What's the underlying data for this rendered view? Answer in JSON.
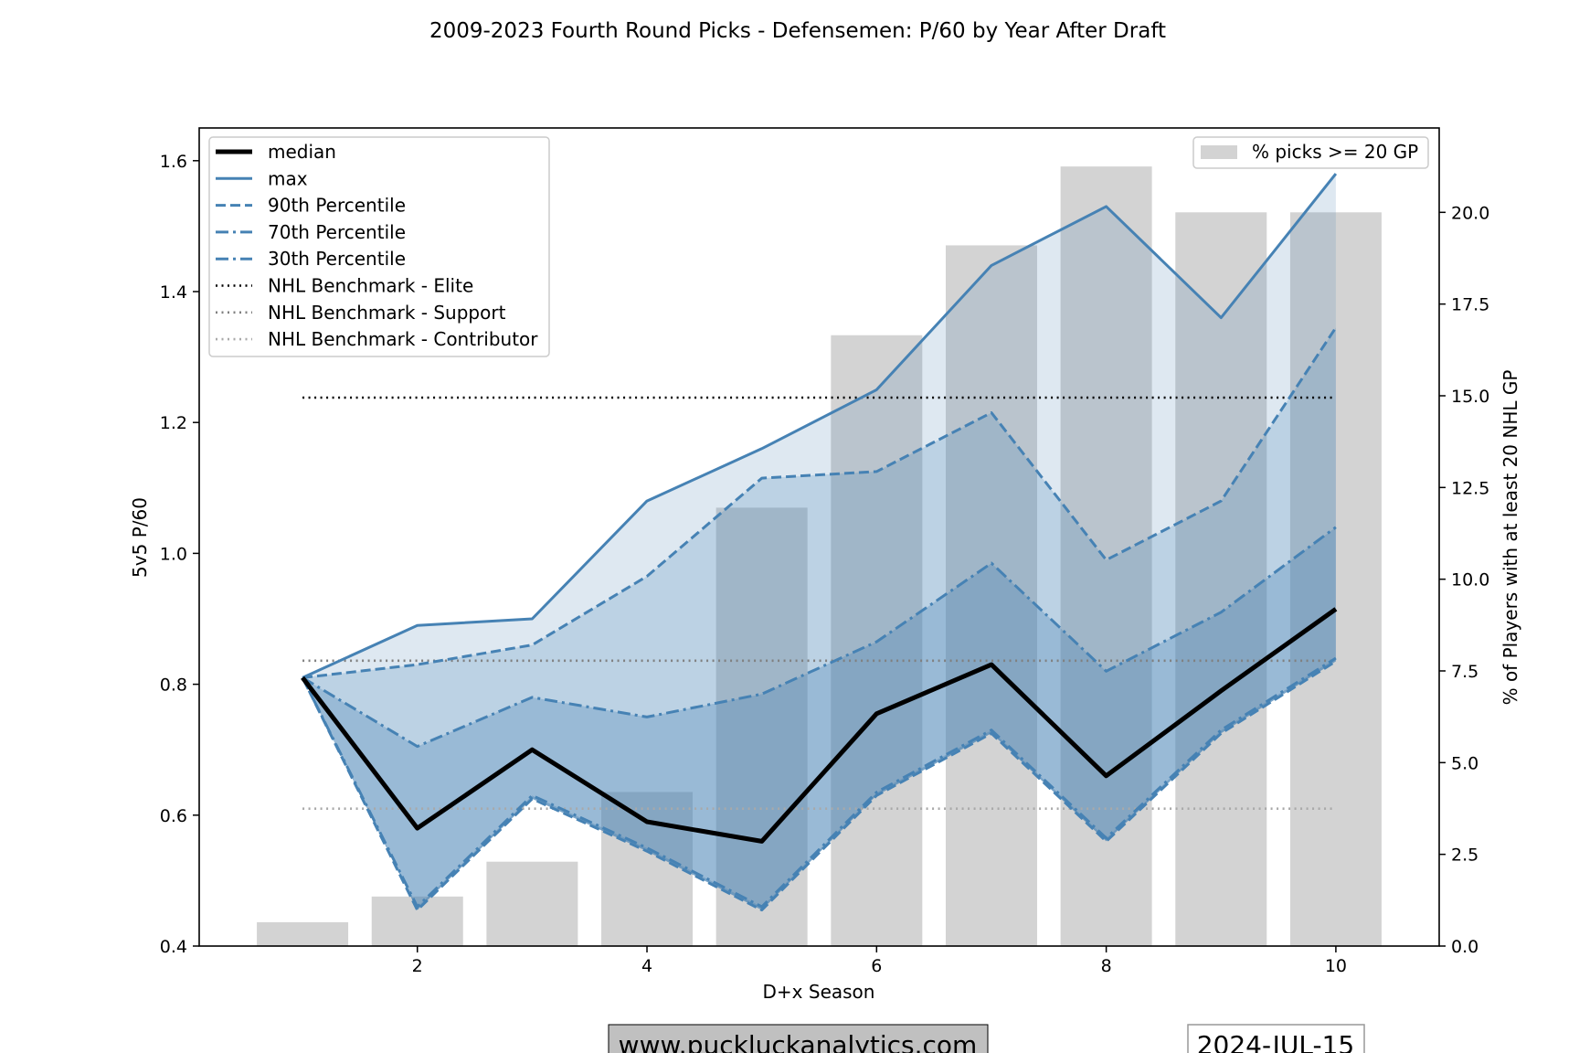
{
  "chart_data": {
    "type": "line",
    "title": "2009-2023 Fourth Round Picks - Defensemen: P/60 by Year After Draft",
    "xlabel": "D+x Season",
    "ylabel": "5v5 P/60",
    "y2label": "% of Players with at least 20 NHL GP",
    "xlim": [
      0.1,
      10.9
    ],
    "ylim": [
      0.4,
      1.65
    ],
    "y2lim": [
      0,
      22.3
    ],
    "xticks": [
      2,
      4,
      6,
      8,
      10
    ],
    "yticks": [
      0.4,
      0.6,
      0.8,
      1.0,
      1.2,
      1.4,
      1.6
    ],
    "y2ticks": [
      0,
      2.5,
      5,
      7.5,
      10,
      12.5,
      15,
      17.5,
      20
    ],
    "x": [
      1,
      2,
      3,
      4,
      5,
      6,
      7,
      8,
      9,
      10
    ],
    "series": [
      {
        "name": "median",
        "style": "solid-thick",
        "color": "#000000",
        "values": [
          0.81,
          0.58,
          0.7,
          0.59,
          0.56,
          0.755,
          0.83,
          0.66,
          0.79,
          0.915
        ]
      },
      {
        "name": "max",
        "style": "solid",
        "color": "#4682b4",
        "values": [
          0.81,
          0.89,
          0.9,
          1.08,
          1.16,
          1.25,
          1.44,
          1.53,
          1.36,
          1.58
        ]
      },
      {
        "name": "90th Percentile",
        "style": "dashed",
        "color": "#4682b4",
        "values": [
          0.81,
          0.83,
          0.86,
          0.965,
          1.115,
          1.125,
          1.215,
          0.99,
          1.08,
          1.345
        ]
      },
      {
        "name": "70th Percentile",
        "style": "dashdot",
        "color": "#4682b4",
        "values": [
          0.81,
          0.705,
          0.78,
          0.75,
          0.785,
          0.865,
          0.985,
          0.82,
          0.91,
          1.04
        ]
      },
      {
        "name": "30th Percentile",
        "style": "dashdot",
        "color": "#4682b4",
        "values": [
          0.81,
          0.46,
          0.63,
          0.55,
          0.46,
          0.635,
          0.73,
          0.565,
          0.73,
          0.84
        ]
      },
      {
        "name": "min",
        "style": "dashed",
        "color": "#4682b4",
        "legend": false,
        "values": [
          0.81,
          0.455,
          0.625,
          0.545,
          0.455,
          0.63,
          0.725,
          0.56,
          0.725,
          0.835
        ]
      }
    ],
    "benchmarks": [
      {
        "name": "NHL Benchmark - Elite",
        "value": 1.238,
        "color": "#000000"
      },
      {
        "name": "NHL Benchmark - Support",
        "value": 0.836,
        "color": "#808080"
      },
      {
        "name": "NHL Benchmark - Contributor",
        "value": 0.61,
        "color": "#a9a9a9"
      }
    ],
    "bars": {
      "name": "% picks >= 20 GP",
      "axis": "right",
      "color": "#d3d3d3",
      "values": [
        0.65,
        1.35,
        2.3,
        4.2,
        11.95,
        16.65,
        19.1,
        21.25,
        20.0,
        20.0
      ]
    },
    "bands_fill_color": "#4682b4",
    "legend_left_loc": "upper left",
    "legend_right_loc": "upper right"
  },
  "footer": {
    "website": "www.puckluckanalytics.com",
    "date": "2024-JUL-15"
  }
}
